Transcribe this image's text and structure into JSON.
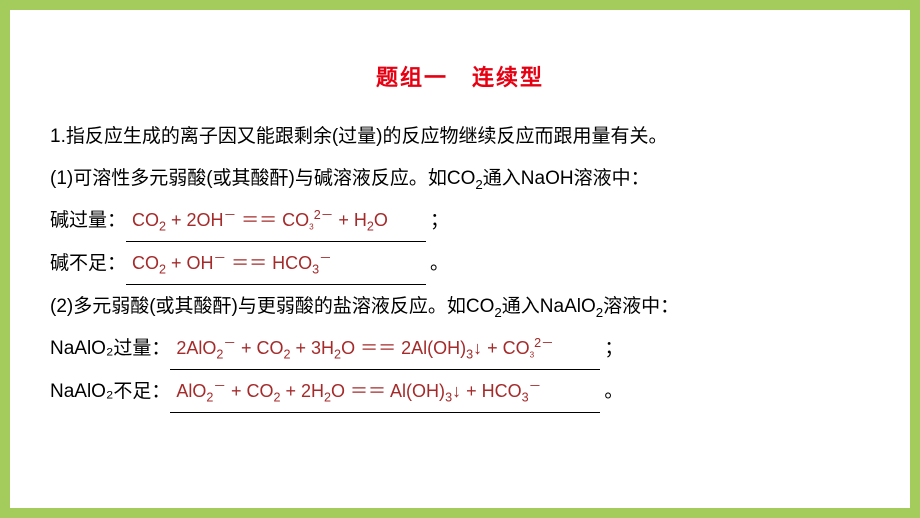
{
  "colors": {
    "page_bg": "#ffffff",
    "outer_bg": "#a4cc5c",
    "title_color": "#e60012",
    "text_color": "#000000",
    "answer_color": "#a52a2a",
    "underline_color": "#000000"
  },
  "typography": {
    "title_fontsize": 22,
    "body_fontsize": 19,
    "answer_fontsize": 18,
    "font_family": "Microsoft YaHei"
  },
  "title": "题组一　连续型",
  "intro": "1.指反应生成的离子因又能跟剩余(过量)的反应物继续反应而跟用量有关。",
  "items": [
    {
      "prompt": "(1)可溶性多元弱酸(或其酸酐)与碱溶液反应。如CO₂通入NaOH溶液中：",
      "rows": [
        {
          "label": "碱过量：",
          "answer": "CO₂ + 2OH⁻ ＝＝ CO₃²⁻ + H₂O",
          "end": "；"
        },
        {
          "label": "碱不足：",
          "answer": "CO₂ + OH⁻ ＝＝ HCO₃⁻",
          "end": "。"
        }
      ]
    },
    {
      "prompt": "(2)多元弱酸(或其酸酐)与更弱酸的盐溶液反应。如CO₂通入NaAlO₂溶液中：",
      "rows": [
        {
          "label": "NaAlO₂过量：",
          "answer": "2AlO₂⁻ + CO₂ + 3H₂O ＝＝ 2Al(OH)₃↓ + CO₃²⁻",
          "end": "；"
        },
        {
          "label": "NaAlO₂不足：",
          "answer": "AlO₂⁻ + CO₂ + 2H₂O ＝＝ Al(OH)₃↓ + HCO₃⁻",
          "end": "。"
        }
      ]
    }
  ]
}
